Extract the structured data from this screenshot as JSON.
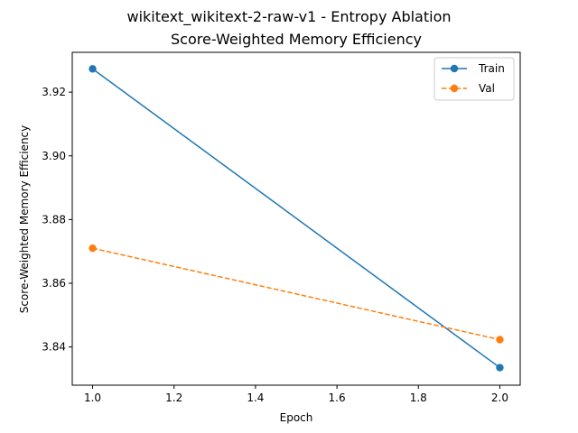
{
  "chart_data": {
    "type": "line",
    "title": "wikitext_wikitext-2-raw-v1 - Entropy Ablation",
    "subtitle": "Score-Weighted Memory Efficiency",
    "xlabel": "Epoch",
    "ylabel": "Score-Weighted Memory Efficiency",
    "xlim": [
      0.95,
      2.05
    ],
    "ylim": [
      3.828,
      3.9325
    ],
    "xticks": [
      1.0,
      1.2,
      1.4,
      1.6,
      1.8,
      2.0
    ],
    "xtick_labels": [
      "1.0",
      "1.2",
      "1.4",
      "1.6",
      "1.8",
      "2.0"
    ],
    "yticks": [
      3.84,
      3.86,
      3.88,
      3.9,
      3.92
    ],
    "ytick_labels": [
      "3.84",
      "3.86",
      "3.88",
      "3.90",
      "3.92"
    ],
    "grid": false,
    "legend_position": "top-right",
    "series": [
      {
        "name": "Train",
        "x": [
          1.0,
          2.0
        ],
        "values": [
          3.9273,
          3.8335
        ],
        "color": "#1f77b4",
        "linestyle": "solid",
        "marker": "circle"
      },
      {
        "name": "Val",
        "x": [
          1.0,
          2.0
        ],
        "values": [
          3.871,
          3.8423
        ],
        "color": "#ff7f0e",
        "linestyle": "dashed",
        "marker": "circle"
      }
    ]
  }
}
